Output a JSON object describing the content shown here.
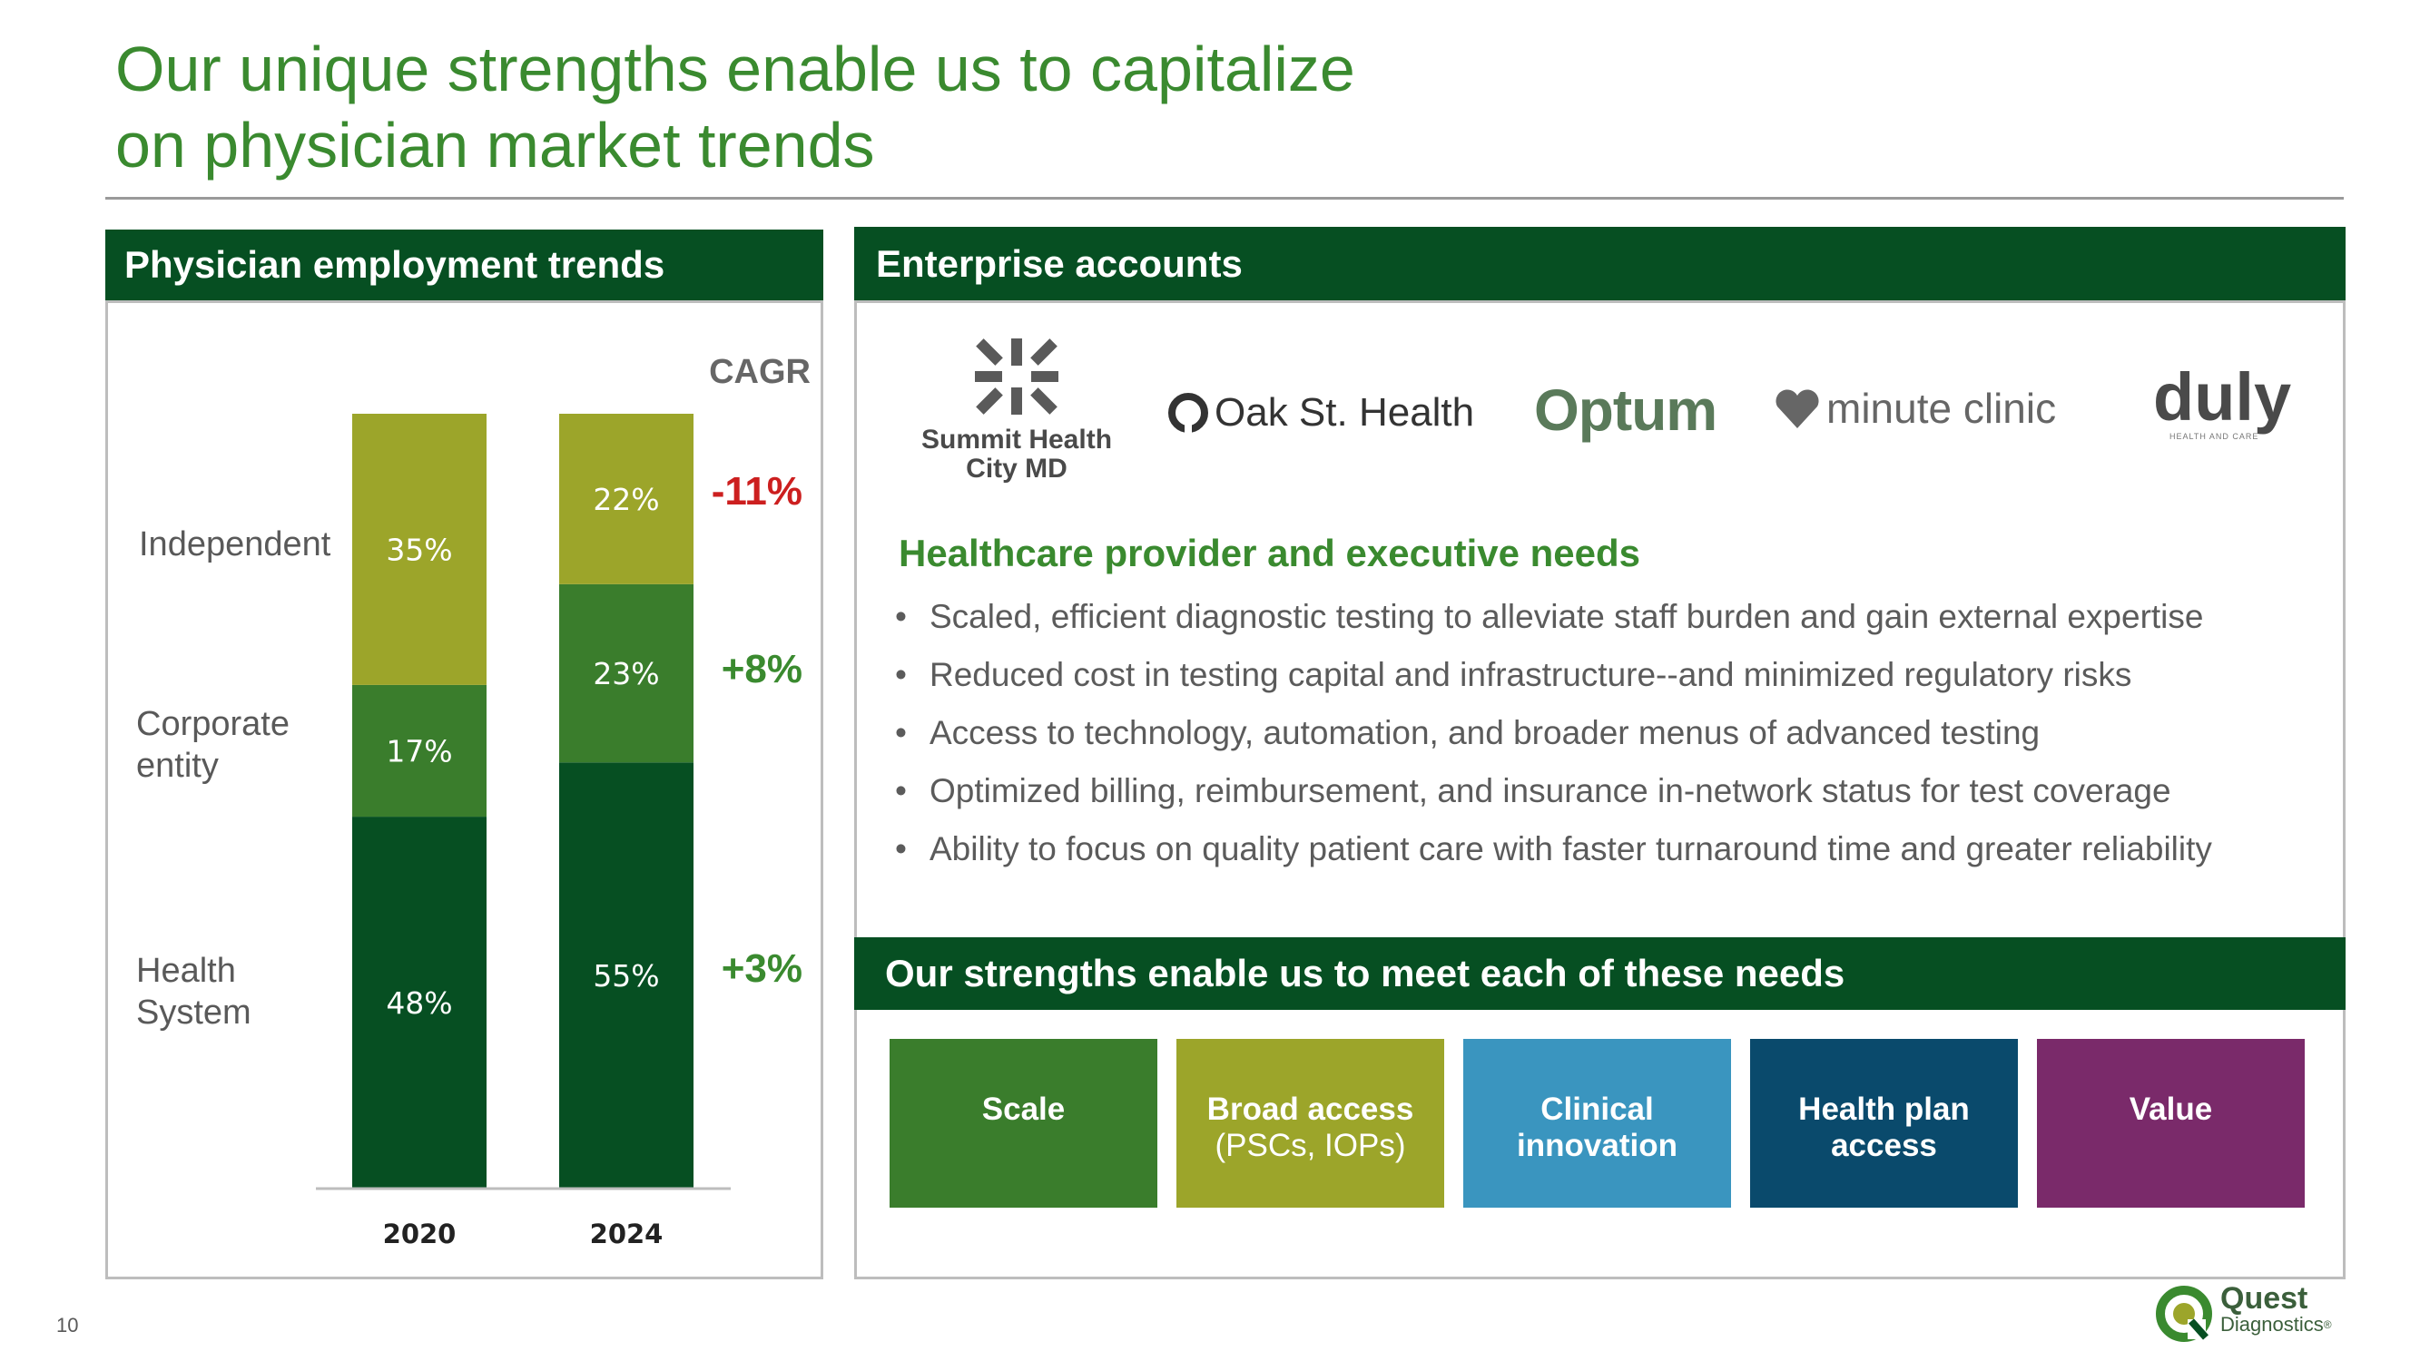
{
  "slide": {
    "title_line1": "Our unique strengths enable us to capitalize",
    "title_line2": "on physician market trends",
    "page_number": "10"
  },
  "left_panel": {
    "header": "Physician employment trends",
    "cagr_label": "CAGR"
  },
  "chart_data": {
    "type": "bar",
    "stacked": true,
    "categories": [
      "2020",
      "2024"
    ],
    "series": [
      {
        "name": "Health System",
        "label_lines": [
          "Health",
          "System"
        ],
        "values": [
          48,
          55
        ],
        "labels": [
          "48%",
          "55%"
        ],
        "color": "#064f22",
        "cagr": "+3%",
        "cagr_color": "#3a8a2f"
      },
      {
        "name": "Corporate entity",
        "label_lines": [
          "Corporate",
          "entity"
        ],
        "values": [
          17,
          23
        ],
        "labels": [
          "17%",
          "23%"
        ],
        "color": "#3a7d2c",
        "cagr": "+8%",
        "cagr_color": "#3a8a2f"
      },
      {
        "name": "Independent",
        "label_lines": [
          "Independent"
        ],
        "values": [
          35,
          22
        ],
        "labels": [
          "35%",
          "22%"
        ],
        "color": "#9ca52a",
        "cagr": "-11%",
        "cagr_color": "#cc1f1f"
      }
    ],
    "ylim": [
      0,
      100
    ],
    "title": "Physician employment trends",
    "xlabel": "",
    "ylabel": ""
  },
  "right_panel": {
    "header": "Enterprise accounts",
    "logos": {
      "summit_line1": "Summit Health",
      "summit_line2": "City MD",
      "oak": "Oak St. Health",
      "optum": "Optum",
      "minute": "minute clinic",
      "duly": "duly",
      "duly_sub": "HEALTH AND CARE"
    },
    "needs_title": "Healthcare provider and executive needs",
    "needs": [
      "Scaled, efficient diagnostic testing to alleviate staff burden and gain external expertise",
      "Reduced cost in testing capital and infrastructure--and minimized regulatory risks",
      "Access to technology, automation, and broader menus of advanced testing",
      "Optimized billing, reimbursement, and insurance in-network status for test coverage",
      "Ability to focus on quality patient care with faster turnaround time and greater reliability"
    ],
    "bullet": "•",
    "strengths_header": "Our strengths enable us to meet each of these needs",
    "tiles": [
      {
        "line1": "Scale",
        "line2": "",
        "color": "#3a7d2c"
      },
      {
        "line1": "Broad access",
        "line2": "(PSCs, IOPs)",
        "color": "#9ca52a"
      },
      {
        "line1": "Clinical",
        "line2": "innovation",
        "color": "#3a95bf"
      },
      {
        "line1": "Health plan",
        "line2": "access",
        "color": "#0a4a6c"
      },
      {
        "line1": "Value",
        "line2": "",
        "color": "#7a2a6a"
      }
    ]
  },
  "brand": {
    "name": "Quest",
    "sub": "Diagnostics",
    "registered": "®"
  }
}
